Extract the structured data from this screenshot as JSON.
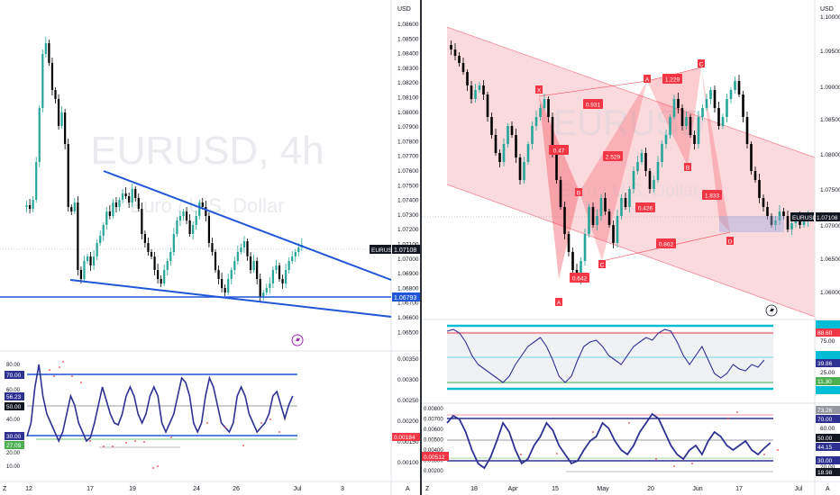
{
  "left": {
    "currency": "USD",
    "watermark_symbol": "EURUSD, 4h",
    "watermark_desc": "Euro / U.S. Dollar",
    "symbol_label": "EURUSD",
    "last_price": "1.07108",
    "support_price": "1.06793",
    "price_ticks": [
      "1.08600",
      "1.08500",
      "1.08400",
      "1.08300",
      "1.08200",
      "1.08100",
      "1.08000",
      "1.07900",
      "1.07800",
      "1.07700",
      "1.07600",
      "1.07500",
      "1.07400",
      "1.07300",
      "1.07200",
      "1.07100",
      "1.07000",
      "1.06900",
      "1.06800",
      "1.06700",
      "1.06600",
      "1.06500"
    ],
    "date_ticks": [
      "12",
      "17",
      "19",
      "24",
      "26",
      "Jul",
      "3"
    ],
    "z_label": "Z",
    "a_label": "A",
    "indicator": {
      "ticks": [
        "80.00",
        "70.00",
        "60.00",
        "50.00",
        "40.00",
        "30.00",
        "20.00",
        "10.00"
      ],
      "badge_70": "70.00",
      "badge_5623": "56.23",
      "badge_50": "50.00",
      "badge_30": "30.00",
      "badge_2709": "27.09",
      "right_ticks": [
        "0.00350",
        "0.00300",
        "0.00250",
        "0.00200",
        "0.00150",
        "0.00100"
      ],
      "badge_right": "0.00184"
    }
  },
  "right": {
    "currency": "USD",
    "watermark_symbol": "EURUSD",
    "watermark_desc": "Euro / U.S. Dollar",
    "symbol_label": "EURUSD",
    "last_price": "1.07108",
    "price_ticks": [
      "1.10000",
      "1.09500",
      "1.09000",
      "1.08500",
      "1.08000",
      "1.07500",
      "1.07000",
      "1.06500",
      "1.06000"
    ],
    "date_ticks": [
      "18",
      "Apr",
      "15",
      "May",
      "20",
      "Jun",
      "17",
      "Jul"
    ],
    "z_label": "Z",
    "a_label": "A",
    "pattern_points": [
      "X",
      "A",
      "B",
      "C",
      "D",
      "A",
      "B",
      "C",
      "D"
    ],
    "ratios": [
      "0.931",
      "1.229",
      "0.47",
      "2.529",
      "0.426",
      "1.833",
      "0.862",
      "0.642"
    ],
    "rsi": {
      "ticks": [
        "75.00",
        "50.00",
        "25.00"
      ],
      "badge_top": "88.60",
      "badge_mid": "39.86",
      "badge_low": "11.30"
    },
    "macd": {
      "ticks": [
        "0.00800",
        "0.00700",
        "0.00600",
        "0.00500",
        "0.00400",
        "0.00300",
        "0.00200"
      ],
      "badge_left": "0.00512",
      "right_ticks": [
        "60.00",
        "40.00",
        "20.00"
      ],
      "badge_7326": "73.26",
      "badge_70": "70.00",
      "badge_50": "50.00",
      "badge_4415": "44.15",
      "badge_30": "30.00",
      "badge_1898": "18.98"
    }
  },
  "colors": {
    "up": "#26a69a",
    "down": "#000000",
    "trendline": "#2157d6",
    "pattern": "#f23645",
    "indicator": "#2e3192"
  }
}
